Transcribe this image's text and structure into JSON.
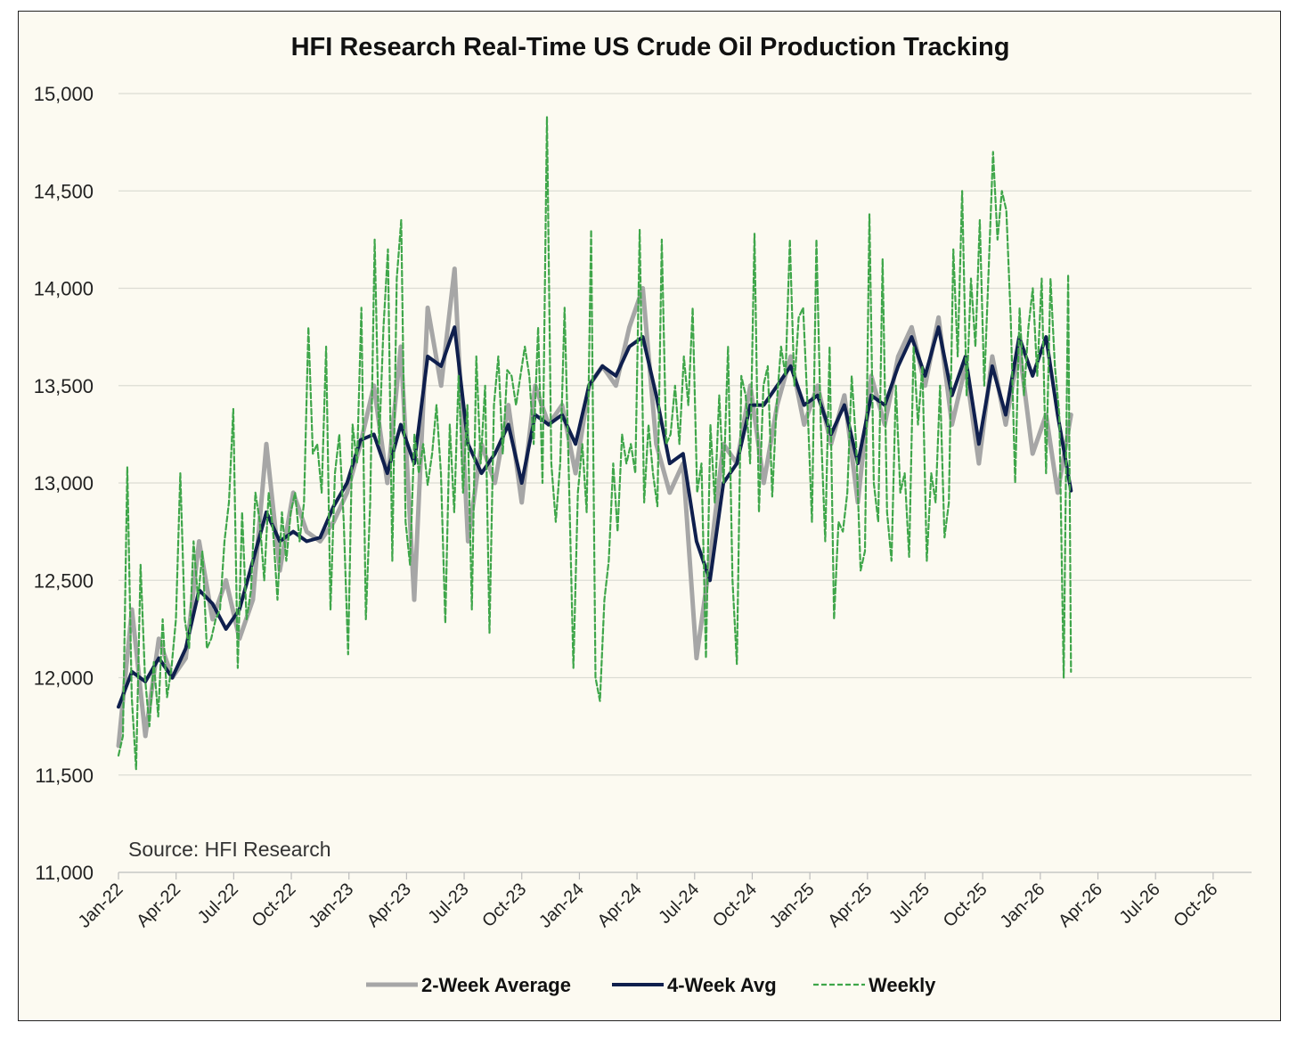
{
  "chart_data": {
    "type": "line",
    "title": "HFI Research Real-Time US Crude Oil Production Tracking",
    "annotation": "Source: HFI Research",
    "xlabel": "",
    "ylabel": "",
    "ylim": [
      11000,
      15000
    ],
    "yticks": [
      11000,
      11500,
      12000,
      12500,
      13000,
      13500,
      14000,
      14500,
      15000
    ],
    "ytick_labels": [
      "11,000",
      "11,500",
      "12,000",
      "12,500",
      "13,000",
      "13,500",
      "14,000",
      "14,500",
      "15,000"
    ],
    "xlim_months": [
      0,
      59
    ],
    "xticks": [
      0,
      3,
      6,
      9,
      12,
      15,
      18,
      21,
      24,
      27,
      30,
      33,
      36,
      39,
      42,
      45,
      48,
      51,
      54,
      57
    ],
    "xtick_labels": [
      "Jan-22",
      "Apr-22",
      "Jul-22",
      "Oct-22",
      "Jan-23",
      "Apr-23",
      "Jul-23",
      "Oct-23",
      "Jan-24",
      "Apr-24",
      "Jul-24",
      "Oct-24",
      "Jan-25",
      "Apr-25",
      "Jul-25",
      "Oct-25",
      "Jan-26",
      "Apr-26",
      "Jul-26",
      "Oct-26"
    ],
    "grid": true,
    "legend_position": "bottom",
    "series": [
      {
        "name": "2-Week Average",
        "color": "#a6a6a6",
        "style": "solid",
        "x": [
          0.0,
          0.7,
          1.4,
          2.1,
          2.8,
          3.5,
          4.2,
          4.9,
          5.6,
          6.3,
          7.0,
          7.7,
          8.4,
          9.1,
          9.8,
          10.5,
          11.2,
          11.9,
          12.6,
          13.3,
          14.0,
          14.7,
          15.4,
          16.1,
          16.8,
          17.5,
          18.2,
          18.9,
          19.6,
          20.3,
          21.0,
          21.7,
          22.4,
          23.1,
          23.8,
          24.5,
          25.2,
          25.9,
          26.6,
          27.3,
          28.0,
          28.7,
          29.4,
          30.1,
          30.8,
          31.5,
          32.2,
          32.9,
          33.6,
          34.3,
          35.0,
          35.7,
          36.4,
          37.1,
          37.8,
          38.5,
          39.2,
          39.9,
          40.6,
          41.3,
          42.0,
          42.7,
          43.4,
          44.1,
          44.8,
          45.5,
          46.2,
          46.9,
          47.6,
          48.3,
          48.9,
          49.6
        ],
        "values": [
          11650,
          12350,
          11700,
          12200,
          12000,
          12100,
          12700,
          12300,
          12500,
          12200,
          12400,
          13200,
          12550,
          12950,
          12750,
          12700,
          12800,
          12950,
          13200,
          13500,
          13000,
          13700,
          12400,
          13900,
          13500,
          14100,
          12700,
          13200,
          13000,
          13400,
          12900,
          13500,
          13300,
          13400,
          13050,
          13500,
          13600,
          13500,
          13800,
          14000,
          13200,
          12950,
          13100,
          12100,
          12600,
          13200,
          13100,
          13500,
          13000,
          13400,
          13650,
          13300,
          13500,
          13200,
          13450,
          12900,
          13550,
          13300,
          13650,
          13800,
          13500,
          13850,
          13300,
          13600,
          13100,
          13650,
          13300,
          13700,
          13150,
          13350,
          12950,
          13350
        ]
      },
      {
        "name": "4-Week Avg",
        "color": "#0f1f4d",
        "style": "solid",
        "x": [
          0.0,
          0.7,
          1.4,
          2.1,
          2.8,
          3.5,
          4.2,
          4.9,
          5.6,
          6.3,
          7.0,
          7.7,
          8.4,
          9.1,
          9.8,
          10.5,
          11.2,
          11.9,
          12.6,
          13.3,
          14.0,
          14.7,
          15.4,
          16.1,
          16.8,
          17.5,
          18.2,
          18.9,
          19.6,
          20.3,
          21.0,
          21.7,
          22.4,
          23.1,
          23.8,
          24.5,
          25.2,
          25.9,
          26.6,
          27.3,
          28.0,
          28.7,
          29.4,
          30.1,
          30.8,
          31.5,
          32.2,
          32.9,
          33.6,
          34.3,
          35.0,
          35.7,
          36.4,
          37.1,
          37.8,
          38.5,
          39.2,
          39.9,
          40.6,
          41.3,
          42.0,
          42.7,
          43.4,
          44.1,
          44.8,
          45.5,
          46.2,
          46.9,
          47.6,
          48.3,
          48.9,
          49.6
        ],
        "values": [
          11850,
          12030,
          11980,
          12100,
          12000,
          12150,
          12450,
          12380,
          12250,
          12350,
          12600,
          12850,
          12700,
          12750,
          12700,
          12720,
          12880,
          13000,
          13220,
          13250,
          13050,
          13300,
          13100,
          13650,
          13600,
          13800,
          13200,
          13050,
          13150,
          13300,
          13000,
          13350,
          13300,
          13350,
          13200,
          13500,
          13600,
          13550,
          13700,
          13750,
          13450,
          13100,
          13150,
          12700,
          12500,
          13000,
          13100,
          13400,
          13400,
          13500,
          13600,
          13400,
          13450,
          13250,
          13400,
          13100,
          13450,
          13400,
          13600,
          13750,
          13550,
          13800,
          13450,
          13650,
          13200,
          13600,
          13350,
          13750,
          13550,
          13750,
          13350,
          12960
        ]
      },
      {
        "name": "Weekly",
        "color": "#3fa64a",
        "style": "dashed",
        "x": [
          0.0,
          0.23,
          0.46,
          0.69,
          0.92,
          1.15,
          1.38,
          1.61,
          1.84,
          2.07,
          2.3,
          2.53,
          2.76,
          2.99,
          3.22,
          3.45,
          3.68,
          3.91,
          4.14,
          4.37,
          4.6,
          4.83,
          5.06,
          5.29,
          5.52,
          5.75,
          5.98,
          6.21,
          6.44,
          6.67,
          6.9,
          7.13,
          7.36,
          7.59,
          7.82,
          8.05,
          8.28,
          8.51,
          8.74,
          8.97,
          9.2,
          9.43,
          9.66,
          9.89,
          10.12,
          10.35,
          10.58,
          10.81,
          11.04,
          11.27,
          11.5,
          11.73,
          11.96,
          12.19,
          12.42,
          12.65,
          12.88,
          13.11,
          13.34,
          13.57,
          13.8,
          14.03,
          14.26,
          14.49,
          14.72,
          14.95,
          15.18,
          15.41,
          15.64,
          15.87,
          16.1,
          16.33,
          16.56,
          16.79,
          17.02,
          17.25,
          17.48,
          17.71,
          17.94,
          18.17,
          18.4,
          18.63,
          18.86,
          19.09,
          19.32,
          19.55,
          19.78,
          20.01,
          20.24,
          20.47,
          20.7,
          20.93,
          21.16,
          21.39,
          21.62,
          21.85,
          22.08,
          22.31,
          22.54,
          22.77,
          23.0,
          23.23,
          23.46,
          23.69,
          23.92,
          24.15,
          24.38,
          24.61,
          24.84,
          25.07,
          25.3,
          25.53,
          25.76,
          25.99,
          26.22,
          26.45,
          26.68,
          26.91,
          27.14,
          27.37,
          27.6,
          27.83,
          28.06,
          28.29,
          28.52,
          28.75,
          28.98,
          29.21,
          29.44,
          29.67,
          29.9,
          30.13,
          30.36,
          30.59,
          30.82,
          31.05,
          31.28,
          31.51,
          31.74,
          31.97,
          32.2,
          32.43,
          32.66,
          32.89,
          33.12,
          33.35,
          33.58,
          33.81,
          34.04,
          34.27,
          34.5,
          34.73,
          34.96,
          35.19,
          35.42,
          35.65,
          35.88,
          36.11,
          36.34,
          36.57,
          36.8,
          37.03,
          37.26,
          37.49,
          37.72,
          37.95,
          38.18,
          38.41,
          38.64,
          38.87,
          39.1,
          39.33,
          39.56,
          39.79,
          40.02,
          40.25,
          40.48,
          40.71,
          40.94,
          41.17,
          41.4,
          41.63,
          41.86,
          42.09,
          42.32,
          42.55,
          42.78,
          43.01,
          43.24,
          43.47,
          43.7,
          43.93,
          44.16,
          44.39,
          44.62,
          44.85,
          45.08,
          45.31,
          45.54,
          45.77,
          46.0,
          46.23,
          46.46,
          46.69,
          46.92,
          47.15,
          47.38,
          47.61,
          47.84,
          48.07,
          48.3,
          48.53,
          48.76,
          48.99,
          49.22,
          49.45,
          49.6
        ],
        "values": [
          11600,
          11700,
          13080,
          11900,
          11530,
          12580,
          12000,
          11750,
          12080,
          11800,
          12300,
          11900,
          12050,
          12300,
          13050,
          12300,
          12150,
          12700,
          12400,
          12650,
          12150,
          12200,
          12300,
          12350,
          12700,
          12900,
          13380,
          12050,
          12850,
          12300,
          12450,
          12950,
          12800,
          12500,
          12950,
          12750,
          12400,
          12850,
          12600,
          12850,
          12950,
          12700,
          12900,
          13800,
          13150,
          13200,
          12950,
          13700,
          12350,
          13050,
          13250,
          12800,
          12120,
          13300,
          13100,
          13900,
          12300,
          12900,
          14250,
          13200,
          13800,
          14200,
          12600,
          14050,
          14350,
          12800,
          12580,
          13250,
          13050,
          13200,
          12990,
          13150,
          13400,
          13050,
          12280,
          13300,
          12850,
          13550,
          12950,
          13400,
          12350,
          13650,
          13100,
          13500,
          12230,
          13400,
          13650,
          13150,
          13580,
          13550,
          13400,
          13550,
          13700,
          13550,
          13200,
          13800,
          13000,
          14880,
          13100,
          12800,
          13100,
          13900,
          13000,
          12050,
          12950,
          13200,
          12850,
          14300,
          12000,
          11880,
          12400,
          12600,
          13100,
          12750,
          13250,
          13100,
          13200,
          13050,
          14300,
          12900,
          13300,
          13050,
          12880,
          14250,
          13200,
          13250,
          13500,
          13200,
          13650,
          13400,
          13900,
          12950,
          13100,
          12100,
          13300,
          12900,
          13450,
          13000,
          13700,
          12500,
          12070,
          13550,
          13450,
          13100,
          14280,
          12850,
          13500,
          13600,
          12930,
          13400,
          13700,
          13550,
          14250,
          13500,
          13850,
          13900,
          13400,
          12800,
          14250,
          13300,
          12700,
          13700,
          12300,
          12800,
          12750,
          12950,
          13550,
          13200,
          12550,
          12650,
          14380,
          13000,
          12800,
          14150,
          12850,
          12600,
          13500,
          12950,
          13050,
          12620,
          13700,
          13300,
          13600,
          12600,
          13050,
          12900,
          13500,
          12720,
          12900,
          14200,
          13650,
          14500,
          13450,
          14050,
          13700,
          14350,
          13500,
          14100,
          14700,
          14250,
          14500,
          14400,
          13850,
          13000,
          13900,
          13450,
          13800,
          14000,
          13550,
          14050,
          13050,
          14050,
          13600,
          13350,
          12000,
          14070,
          12030
        ]
      }
    ]
  }
}
